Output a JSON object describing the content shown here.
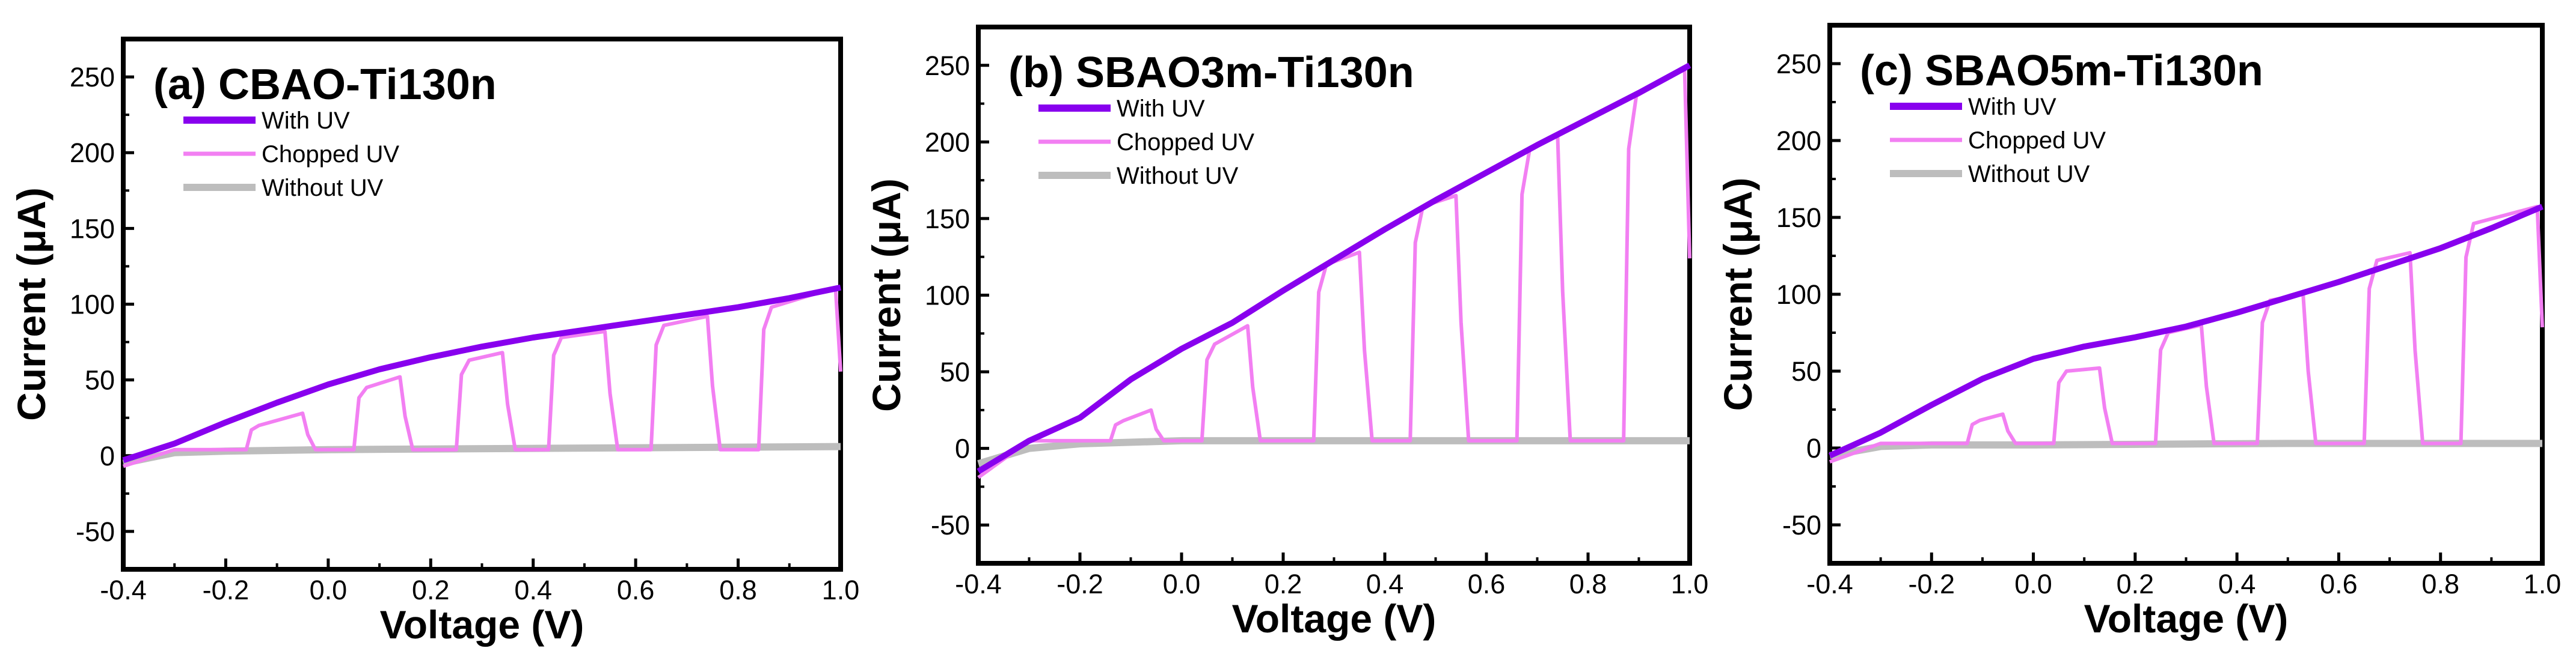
{
  "chart_data": [
    {
      "type": "line",
      "title": "(a) CBAO-Ti130n",
      "xlabel": "Voltage (V)",
      "ylabel": "Current (μA)",
      "xlim": [
        -0.4,
        1.0
      ],
      "ylim": [
        -75,
        275
      ],
      "xticks": [
        "-0.4",
        "-0.2",
        "0.0",
        "0.2",
        "0.4",
        "0.6",
        "0.8",
        "1.0"
      ],
      "yticks": [
        "-50",
        "0",
        "50",
        "100",
        "150",
        "200",
        "250"
      ],
      "legend": [
        "With UV",
        "Chopped UV",
        "Without UV"
      ],
      "series": [
        {
          "name": "With UV",
          "color": "#8800ee",
          "x": [
            -0.4,
            -0.3,
            -0.2,
            -0.1,
            0.0,
            0.1,
            0.2,
            0.3,
            0.4,
            0.5,
            0.6,
            0.7,
            0.8,
            0.9,
            1.0
          ],
          "y": [
            -3,
            8,
            22,
            35,
            47,
            57,
            65,
            72,
            78,
            83,
            88,
            93,
            98,
            104,
            111
          ]
        },
        {
          "name": "Chopped UV",
          "color": "#f27ff2",
          "pulses": [
            [
              -0.15,
              -0.04,
              20,
              28
            ],
            [
              0.06,
              0.15,
              45,
              52
            ],
            [
              0.26,
              0.35,
              63,
              68
            ],
            [
              0.44,
              0.55,
              78,
              82
            ],
            [
              0.64,
              0.75,
              86,
              92
            ],
            [
              0.85,
              1.0,
              98,
              111
            ]
          ],
          "dark_level": 4
        },
        {
          "name": "Without UV",
          "color": "#bdbdbd",
          "x": [
            -0.4,
            -0.3,
            -0.2,
            0.0,
            0.5,
            1.0
          ],
          "y": [
            -5,
            2,
            3,
            4,
            5,
            6
          ]
        }
      ]
    },
    {
      "type": "line",
      "title": "(b) SBAO3m-Ti130n",
      "xlabel": "Voltage (V)",
      "ylabel": "Current (μA)",
      "xlim": [
        -0.4,
        1.0
      ],
      "ylim": [
        -75,
        275
      ],
      "xticks": [
        "-0.4",
        "-0.2",
        "0.0",
        "0.2",
        "0.4",
        "0.6",
        "0.8",
        "1.0"
      ],
      "yticks": [
        "-50",
        "0",
        "50",
        "100",
        "150",
        "200",
        "250"
      ],
      "legend": [
        "With UV",
        "Chopped UV",
        "Without UV"
      ],
      "series": [
        {
          "name": "With UV",
          "color": "#8800ee",
          "x": [
            -0.4,
            -0.3,
            -0.2,
            -0.1,
            0.0,
            0.1,
            0.2,
            0.3,
            0.4,
            0.5,
            0.6,
            0.7,
            0.8,
            0.9,
            1.0
          ],
          "y": [
            -15,
            5,
            20,
            45,
            65,
            82,
            103,
            123,
            143,
            162,
            180,
            198,
            215,
            232,
            250
          ]
        },
        {
          "name": "Chopped UV",
          "color": "#f27ff2",
          "pulses": [
            [
              -0.13,
              -0.05,
              18,
              25
            ],
            [
              0.05,
              0.14,
              68,
              80
            ],
            [
              0.27,
              0.36,
              120,
              128
            ],
            [
              0.46,
              0.55,
              158,
              165
            ],
            [
              0.67,
              0.75,
              195,
              205
            ],
            [
              0.88,
              1.0,
              230,
              248
            ]
          ],
          "dark_level": 5
        },
        {
          "name": "Without UV",
          "color": "#bdbdbd",
          "x": [
            -0.4,
            -0.3,
            -0.2,
            0.0,
            0.5,
            1.0
          ],
          "y": [
            -10,
            0,
            3,
            5,
            5,
            5
          ]
        }
      ]
    },
    {
      "type": "line",
      "title": "(c) SBAO5m-Ti130n",
      "xlabel": "Voltage (V)",
      "ylabel": "Current (μA)",
      "xlim": [
        -0.4,
        1.0
      ],
      "ylim": [
        -75,
        275
      ],
      "xticks": [
        "-0.4",
        "-0.2",
        "0.0",
        "0.2",
        "0.4",
        "0.6",
        "0.8",
        "1.0"
      ],
      "yticks": [
        "-50",
        "0",
        "50",
        "100",
        "150",
        "200",
        "250"
      ],
      "legend": [
        "With UV",
        "Chopped UV",
        "Without UV"
      ],
      "series": [
        {
          "name": "With UV",
          "color": "#8800ee",
          "x": [
            -0.4,
            -0.3,
            -0.2,
            -0.1,
            0.0,
            0.1,
            0.2,
            0.3,
            0.4,
            0.5,
            0.6,
            0.7,
            0.8,
            0.9,
            1.0
          ],
          "y": [
            -5,
            10,
            28,
            45,
            58,
            66,
            72,
            79,
            88,
            98,
            108,
            119,
            130,
            143,
            157
          ]
        },
        {
          "name": "Chopped UV",
          "color": "#f27ff2",
          "pulses": [
            [
              -0.12,
              -0.05,
              18,
              22
            ],
            [
              0.05,
              0.14,
              50,
              52
            ],
            [
              0.25,
              0.34,
              75,
              80
            ],
            [
              0.45,
              0.54,
              96,
              100
            ],
            [
              0.66,
              0.75,
              122,
              127
            ],
            [
              0.85,
              1.0,
              146,
              157
            ]
          ],
          "dark_level": 3
        },
        {
          "name": "Without UV",
          "color": "#bdbdbd",
          "x": [
            -0.4,
            -0.3,
            -0.2,
            0.0,
            0.5,
            1.0
          ],
          "y": [
            -5,
            1,
            2,
            2,
            3,
            3
          ]
        }
      ]
    }
  ]
}
